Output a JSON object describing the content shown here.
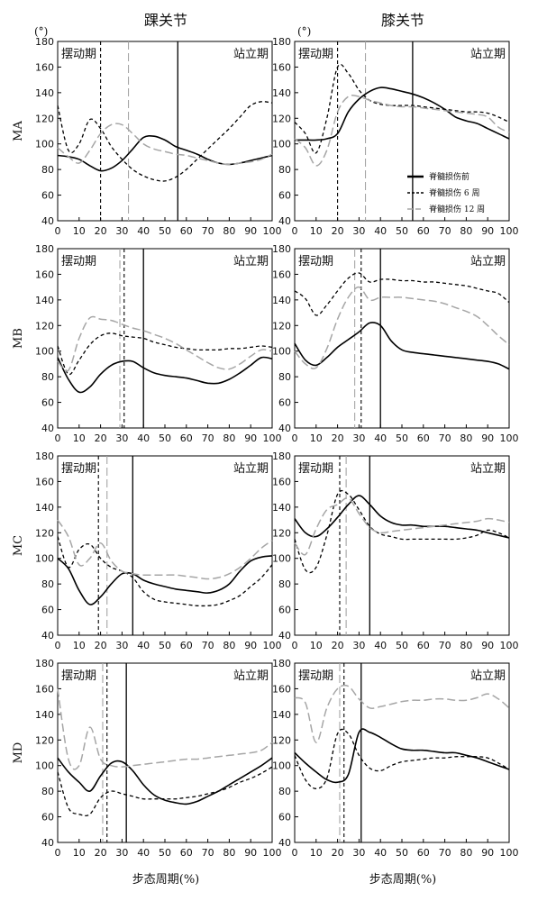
{
  "page": {
    "columns": [
      "踝关节",
      "膝关节"
    ],
    "unit_label": "(°)",
    "x_label": "步态周期(%)",
    "phase_swing": "摆动期",
    "phase_stance": "站立期"
  },
  "legend": [
    {
      "label": "脊髓损伤前",
      "style": "solid"
    },
    {
      "label": "脊髓损伤 6 周",
      "style": "dashed"
    },
    {
      "label": "脊髓损伤 12 周",
      "style": "gray"
    }
  ],
  "colors": {
    "solid": "#000000",
    "dashed": "#000000",
    "gray": "#a6a6a6"
  },
  "chart_data": [
    {
      "type": "line",
      "row": "MA",
      "column": "踝关节",
      "xlim": [
        0,
        100
      ],
      "ylim": [
        40,
        180
      ],
      "xticks": [
        0,
        10,
        20,
        30,
        40,
        50,
        60,
        70,
        80,
        90,
        100
      ],
      "yticks": [
        40,
        60,
        80,
        100,
        120,
        140,
        160,
        180
      ],
      "vlines": {
        "solid": 56,
        "dashed": 20,
        "gray": 33
      },
      "x": [
        0,
        5,
        10,
        15,
        20,
        25,
        30,
        35,
        40,
        45,
        50,
        55,
        60,
        65,
        70,
        75,
        80,
        85,
        90,
        95,
        100
      ],
      "series": [
        {
          "style": "solid",
          "values": [
            91,
            90,
            88,
            83,
            79,
            81,
            87,
            96,
            105,
            106,
            103,
            98,
            95,
            92,
            88,
            85,
            84,
            85,
            87,
            89,
            91
          ]
        },
        {
          "style": "dashed",
          "values": [
            130,
            95,
            100,
            119,
            112,
            98,
            88,
            80,
            75,
            72,
            71,
            74,
            80,
            88,
            96,
            104,
            112,
            121,
            130,
            133,
            132
          ]
        },
        {
          "style": "gray",
          "values": [
            97,
            90,
            85,
            95,
            108,
            115,
            115,
            108,
            100,
            96,
            94,
            92,
            91,
            89,
            87,
            85,
            84,
            85,
            86,
            88,
            92
          ]
        }
      ]
    },
    {
      "type": "line",
      "row": "MA",
      "column": "膝关节",
      "xlim": [
        0,
        100
      ],
      "ylim": [
        40,
        180
      ],
      "xticks": [
        0,
        10,
        20,
        30,
        40,
        50,
        60,
        70,
        80,
        90,
        100
      ],
      "yticks": [
        40,
        60,
        80,
        100,
        120,
        140,
        160,
        180
      ],
      "vlines": {
        "solid": 55,
        "dashed": 20,
        "gray": 33
      },
      "x": [
        0,
        5,
        10,
        15,
        20,
        25,
        30,
        35,
        40,
        45,
        50,
        55,
        60,
        65,
        70,
        75,
        80,
        85,
        90,
        95,
        100
      ],
      "series": [
        {
          "style": "solid",
          "values": [
            103,
            103,
            103,
            104,
            108,
            125,
            135,
            141,
            144,
            143,
            141,
            139,
            136,
            132,
            127,
            121,
            118,
            116,
            112,
            108,
            104
          ]
        },
        {
          "style": "dashed",
          "values": [
            117,
            108,
            93,
            120,
            160,
            155,
            142,
            134,
            131,
            130,
            130,
            130,
            129,
            128,
            127,
            126,
            125,
            125,
            124,
            121,
            117
          ]
        },
        {
          "style": "gray",
          "values": [
            104,
            97,
            83,
            95,
            125,
            137,
            137,
            134,
            132,
            130,
            129,
            129,
            128,
            127,
            126,
            125,
            124,
            123,
            121,
            113,
            109
          ]
        }
      ]
    },
    {
      "type": "line",
      "row": "MB",
      "column": "踝关节",
      "xlim": [
        0,
        100
      ],
      "ylim": [
        40,
        180
      ],
      "xticks": [
        0,
        10,
        20,
        30,
        40,
        50,
        60,
        70,
        80,
        90,
        100
      ],
      "yticks": [
        40,
        60,
        80,
        100,
        120,
        140,
        160,
        180
      ],
      "vlines": {
        "solid": 40,
        "dashed": 31,
        "gray": 29
      },
      "x": [
        0,
        5,
        10,
        15,
        20,
        25,
        30,
        35,
        40,
        45,
        50,
        55,
        60,
        65,
        70,
        75,
        80,
        85,
        90,
        95,
        100
      ],
      "series": [
        {
          "style": "solid",
          "values": [
            95,
            78,
            68,
            72,
            82,
            89,
            92,
            92,
            87,
            83,
            81,
            80,
            79,
            77,
            75,
            75,
            78,
            83,
            89,
            95,
            94
          ]
        },
        {
          "style": "dashed",
          "values": [
            104,
            82,
            93,
            105,
            112,
            114,
            112,
            111,
            110,
            107,
            105,
            103,
            102,
            101,
            101,
            101,
            102,
            102,
            103,
            104,
            103
          ]
        },
        {
          "style": "gray",
          "values": [
            92,
            85,
            110,
            126,
            125,
            124,
            121,
            118,
            116,
            113,
            110,
            106,
            101,
            96,
            91,
            87,
            86,
            90,
            96,
            101,
            100
          ]
        }
      ]
    },
    {
      "type": "line",
      "row": "MB",
      "column": "膝关节",
      "xlim": [
        0,
        100
      ],
      "ylim": [
        40,
        180
      ],
      "xticks": [
        0,
        10,
        20,
        30,
        40,
        50,
        60,
        70,
        80,
        90,
        100
      ],
      "yticks": [
        40,
        60,
        80,
        100,
        120,
        140,
        160,
        180
      ],
      "vlines": {
        "solid": 40,
        "dashed": 31,
        "gray": 28
      },
      "x": [
        0,
        5,
        10,
        15,
        20,
        25,
        30,
        35,
        40,
        45,
        50,
        55,
        60,
        65,
        70,
        75,
        80,
        85,
        90,
        95,
        100
      ],
      "series": [
        {
          "style": "solid",
          "values": [
            106,
            93,
            89,
            95,
            103,
            109,
            115,
            122,
            120,
            108,
            101,
            99,
            98,
            97,
            96,
            95,
            94,
            93,
            92,
            90,
            86
          ]
        },
        {
          "style": "dashed",
          "values": [
            147,
            141,
            128,
            136,
            147,
            157,
            161,
            154,
            156,
            156,
            155,
            155,
            154,
            154,
            153,
            152,
            151,
            149,
            147,
            145,
            138
          ]
        },
        {
          "style": "gray",
          "values": [
            100,
            90,
            87,
            102,
            125,
            142,
            150,
            140,
            142,
            142,
            142,
            141,
            140,
            139,
            137,
            134,
            131,
            127,
            120,
            112,
            105
          ]
        }
      ]
    },
    {
      "type": "line",
      "row": "MC",
      "column": "踝关节",
      "xlim": [
        0,
        100
      ],
      "ylim": [
        40,
        180
      ],
      "xticks": [
        0,
        10,
        20,
        30,
        40,
        50,
        60,
        70,
        80,
        90,
        100
      ],
      "yticks": [
        40,
        60,
        80,
        100,
        120,
        140,
        160,
        180
      ],
      "vlines": {
        "solid": 35,
        "dashed": 19,
        "gray": 23
      },
      "x": [
        0,
        5,
        10,
        15,
        20,
        25,
        30,
        35,
        40,
        45,
        50,
        55,
        60,
        65,
        70,
        75,
        80,
        85,
        90,
        95,
        100
      ],
      "series": [
        {
          "style": "solid",
          "values": [
            100,
            92,
            75,
            64,
            70,
            80,
            88,
            88,
            83,
            80,
            78,
            76,
            75,
            74,
            73,
            75,
            80,
            90,
            98,
            101,
            102
          ]
        },
        {
          "style": "dashed",
          "values": [
            117,
            93,
            107,
            111,
            100,
            93,
            90,
            85,
            74,
            68,
            66,
            65,
            64,
            63,
            63,
            64,
            67,
            71,
            78,
            85,
            95
          ]
        },
        {
          "style": "gray",
          "values": [
            130,
            117,
            95,
            100,
            112,
            98,
            90,
            88,
            87,
            87,
            87,
            87,
            86,
            85,
            84,
            85,
            88,
            93,
            100,
            108,
            114
          ]
        }
      ]
    },
    {
      "type": "line",
      "row": "MC",
      "column": "膝关节",
      "xlim": [
        0,
        100
      ],
      "ylim": [
        40,
        180
      ],
      "xticks": [
        0,
        10,
        20,
        30,
        40,
        50,
        60,
        70,
        80,
        90,
        100
      ],
      "yticks": [
        40,
        60,
        80,
        100,
        120,
        140,
        160,
        180
      ],
      "vlines": {
        "solid": 35,
        "dashed": 21,
        "gray": 24
      },
      "x": [
        0,
        5,
        10,
        15,
        20,
        25,
        30,
        35,
        40,
        45,
        50,
        55,
        60,
        65,
        70,
        75,
        80,
        85,
        90,
        95,
        100
      ],
      "series": [
        {
          "style": "solid",
          "values": [
            131,
            120,
            117,
            123,
            132,
            142,
            149,
            142,
            133,
            128,
            126,
            126,
            125,
            125,
            125,
            124,
            123,
            122,
            120,
            118,
            116
          ]
        },
        {
          "style": "dashed",
          "values": [
            115,
            91,
            93,
            118,
            150,
            150,
            138,
            125,
            119,
            117,
            115,
            115,
            115,
            115,
            115,
            115,
            116,
            118,
            122,
            120,
            116
          ]
        },
        {
          "style": "gray",
          "values": [
            112,
            103,
            123,
            138,
            142,
            147,
            135,
            124,
            120,
            121,
            122,
            123,
            124,
            125,
            126,
            127,
            128,
            129,
            131,
            130,
            128
          ]
        }
      ]
    },
    {
      "type": "line",
      "row": "MD",
      "column": "踝关节",
      "xlim": [
        0,
        100
      ],
      "ylim": [
        40,
        180
      ],
      "xticks": [
        0,
        10,
        20,
        30,
        40,
        50,
        60,
        70,
        80,
        90,
        100
      ],
      "yticks": [
        40,
        60,
        80,
        100,
        120,
        140,
        160,
        180
      ],
      "vlines": {
        "solid": 32,
        "dashed": 23,
        "gray": 21
      },
      "x": [
        0,
        5,
        10,
        15,
        20,
        25,
        30,
        35,
        40,
        45,
        50,
        55,
        60,
        65,
        70,
        75,
        80,
        85,
        90,
        95,
        100
      ],
      "series": [
        {
          "style": "solid",
          "values": [
            106,
            95,
            87,
            80,
            92,
            102,
            103,
            96,
            85,
            77,
            73,
            71,
            70,
            72,
            76,
            80,
            85,
            90,
            95,
            100,
            106
          ]
        },
        {
          "style": "dashed",
          "values": [
            95,
            67,
            62,
            62,
            75,
            80,
            78,
            76,
            74,
            74,
            74,
            74,
            75,
            76,
            78,
            80,
            83,
            87,
            90,
            94,
            99
          ]
        },
        {
          "style": "gray",
          "values": [
            160,
            105,
            100,
            130,
            105,
            100,
            99,
            100,
            101,
            102,
            103,
            104,
            105,
            105,
            106,
            107,
            108,
            109,
            110,
            112,
            118
          ]
        }
      ]
    },
    {
      "type": "line",
      "row": "MD",
      "column": "膝关节",
      "xlim": [
        0,
        100
      ],
      "ylim": [
        40,
        180
      ],
      "xticks": [
        0,
        10,
        20,
        30,
        40,
        50,
        60,
        70,
        80,
        90,
        100
      ],
      "yticks": [
        40,
        60,
        80,
        100,
        120,
        140,
        160,
        180
      ],
      "vlines": {
        "solid": 31,
        "dashed": 23,
        "gray": 21
      },
      "x": [
        0,
        5,
        10,
        15,
        20,
        25,
        30,
        35,
        40,
        45,
        50,
        55,
        60,
        65,
        70,
        75,
        80,
        85,
        90,
        95,
        100
      ],
      "series": [
        {
          "style": "solid",
          "values": [
            110,
            102,
            95,
            89,
            87,
            93,
            126,
            126,
            122,
            117,
            113,
            112,
            112,
            111,
            110,
            110,
            108,
            106,
            103,
            100,
            97
          ]
        },
        {
          "style": "dashed",
          "values": [
            108,
            89,
            82,
            90,
            125,
            125,
            108,
            98,
            96,
            100,
            103,
            104,
            105,
            106,
            106,
            107,
            107,
            107,
            106,
            102,
            97
          ]
        },
        {
          "style": "gray",
          "values": [
            153,
            149,
            118,
            145,
            160,
            162,
            152,
            145,
            146,
            148,
            150,
            151,
            151,
            152,
            152,
            151,
            151,
            153,
            156,
            152,
            145
          ]
        }
      ]
    }
  ]
}
